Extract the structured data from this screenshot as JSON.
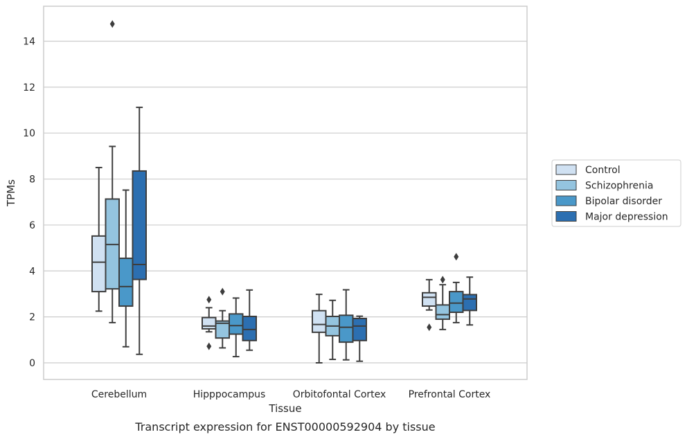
{
  "chart_data": {
    "type": "box",
    "caption": "Transcript expression for ENST00000592904 by tissue",
    "xlabel": "Tissue",
    "ylabel": "TPMs",
    "ylim": [
      -0.7,
      15.5
    ],
    "yticks": [
      0,
      2,
      4,
      6,
      8,
      10,
      12,
      14
    ],
    "grid": true,
    "legend_position": "right",
    "categories": [
      "Cerebellum",
      "Hipppocampus",
      "Orbitofontal Cortex",
      "Prefrontal Cortex"
    ],
    "series": [
      {
        "name": "Control",
        "color": "#d0e1f2",
        "boxes": [
          {
            "whislo": 2.25,
            "q1": 3.1,
            "med": 4.38,
            "q3": 5.52,
            "whishi": 8.5,
            "fliers": []
          },
          {
            "whislo": 1.35,
            "q1": 1.48,
            "med": 1.6,
            "q3": 1.97,
            "whishi": 2.4,
            "fliers": [
              2.75,
              0.72
            ]
          },
          {
            "whislo": 0.0,
            "q1": 1.33,
            "med": 1.67,
            "q3": 2.27,
            "whishi": 2.98,
            "fliers": []
          },
          {
            "whislo": 2.3,
            "q1": 2.47,
            "med": 2.85,
            "q3": 3.05,
            "whishi": 3.62,
            "fliers": [
              1.55
            ]
          }
        ]
      },
      {
        "name": "Schizophrenia",
        "color": "#94c4df",
        "boxes": [
          {
            "whislo": 1.75,
            "q1": 3.22,
            "med": 5.15,
            "q3": 7.13,
            "whishi": 9.42,
            "fliers": [
              14.75
            ]
          },
          {
            "whislo": 0.65,
            "q1": 1.08,
            "med": 1.72,
            "q3": 1.82,
            "whishi": 2.27,
            "fliers": [
              3.1
            ]
          },
          {
            "whislo": 0.15,
            "q1": 1.18,
            "med": 1.6,
            "q3": 2.02,
            "whishi": 2.72,
            "fliers": []
          },
          {
            "whislo": 1.45,
            "q1": 1.9,
            "med": 2.1,
            "q3": 2.52,
            "whishi": 3.4,
            "fliers": [
              3.62
            ]
          }
        ]
      },
      {
        "name": "Bipolar disorder",
        "color": "#4a98c9",
        "boxes": [
          {
            "whislo": 0.7,
            "q1": 2.47,
            "med": 3.32,
            "q3": 4.55,
            "whishi": 7.52,
            "fliers": []
          },
          {
            "whislo": 0.27,
            "q1": 1.25,
            "med": 1.62,
            "q3": 2.13,
            "whishi": 2.82,
            "fliers": []
          },
          {
            "whislo": 0.13,
            "q1": 0.9,
            "med": 1.55,
            "q3": 2.07,
            "whishi": 3.18,
            "fliers": []
          },
          {
            "whislo": 1.75,
            "q1": 2.2,
            "med": 2.6,
            "q3": 3.1,
            "whishi": 3.5,
            "fliers": [
              4.62
            ]
          }
        ]
      },
      {
        "name": "Major depression",
        "color": "#2c6fb1",
        "boxes": [
          {
            "whislo": 0.37,
            "q1": 3.63,
            "med": 4.28,
            "q3": 8.35,
            "whishi": 11.12,
            "fliers": []
          },
          {
            "whislo": 0.55,
            "q1": 0.97,
            "med": 1.45,
            "q3": 2.02,
            "whishi": 3.17,
            "fliers": []
          },
          {
            "whislo": 0.07,
            "q1": 0.97,
            "med": 1.6,
            "q3": 1.93,
            "whishi": 2.03,
            "fliers": []
          },
          {
            "whislo": 1.65,
            "q1": 2.28,
            "med": 2.78,
            "q3": 2.97,
            "whishi": 3.73,
            "fliers": []
          }
        ]
      }
    ]
  }
}
